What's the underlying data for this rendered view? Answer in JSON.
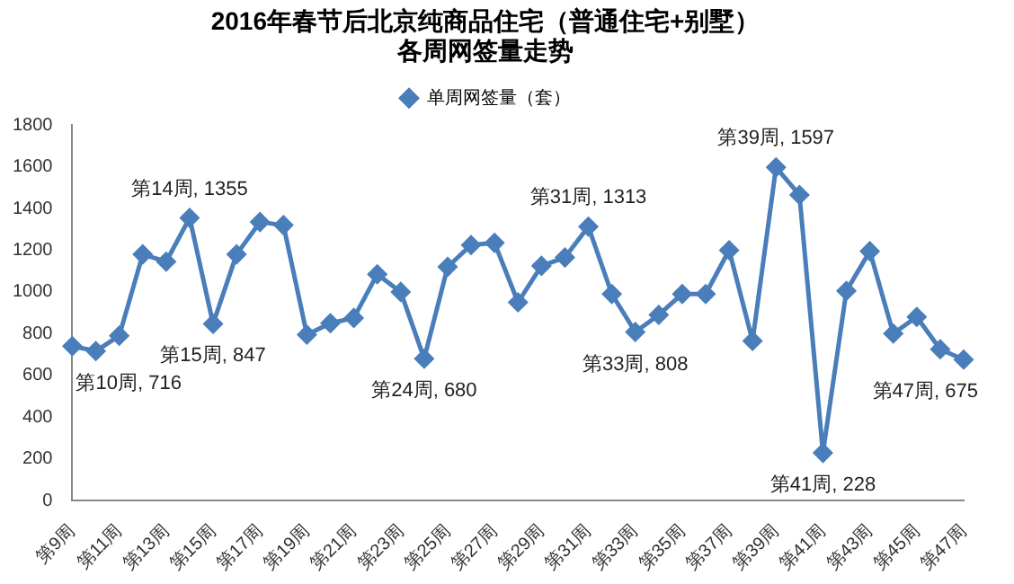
{
  "chart_data": {
    "type": "line",
    "title": "2016年春节后北京纯商品住宅（普通住宅+别墅）",
    "subtitle": "各周网签量走势",
    "categories": [
      "第9周",
      null,
      "第11周",
      null,
      "第13周",
      null,
      "第15周",
      null,
      "第17周",
      null,
      "第19周",
      null,
      "第21周",
      null,
      "第23周",
      null,
      "第25周",
      null,
      "第27周",
      null,
      "第29周",
      null,
      "第31周",
      null,
      "第33周",
      null,
      "第35周",
      null,
      "第37周",
      null,
      "第39周",
      null,
      "第41周",
      null,
      "第43周",
      null,
      "第45周",
      null,
      "第47周"
    ],
    "series": [
      {
        "name": "单周网签量（套）",
        "color": "#4a7ebb",
        "values": [
          740,
          716,
          790,
          1180,
          1145,
          1355,
          847,
          1180,
          1335,
          1320,
          795,
          850,
          875,
          1085,
          1000,
          680,
          1120,
          1225,
          1235,
          950,
          1125,
          1165,
          1313,
          990,
          808,
          890,
          990,
          990,
          1200,
          765,
          1597,
          1465,
          228,
          1005,
          1195,
          800,
          880,
          725,
          675
        ],
        "value_labels": [
          null,
          "第10周, 716",
          null,
          null,
          null,
          "第14周, 1355",
          "第15周, 847",
          null,
          null,
          null,
          null,
          null,
          null,
          null,
          null,
          "第24周, 680",
          null,
          null,
          null,
          null,
          null,
          null,
          "第31周, 1313",
          null,
          "第33周, 808",
          null,
          null,
          null,
          null,
          null,
          "第39周, 1597",
          null,
          "第41周, 228",
          null,
          null,
          null,
          null,
          null,
          "第47周, 675"
        ]
      }
    ],
    "ylim": [
      0,
      1800
    ],
    "yticks": [
      0,
      200,
      400,
      600,
      800,
      1000,
      1200,
      1400,
      1600,
      1800
    ],
    "grid": false,
    "legend": "top",
    "marker": "diamond",
    "line_style": "solid"
  }
}
